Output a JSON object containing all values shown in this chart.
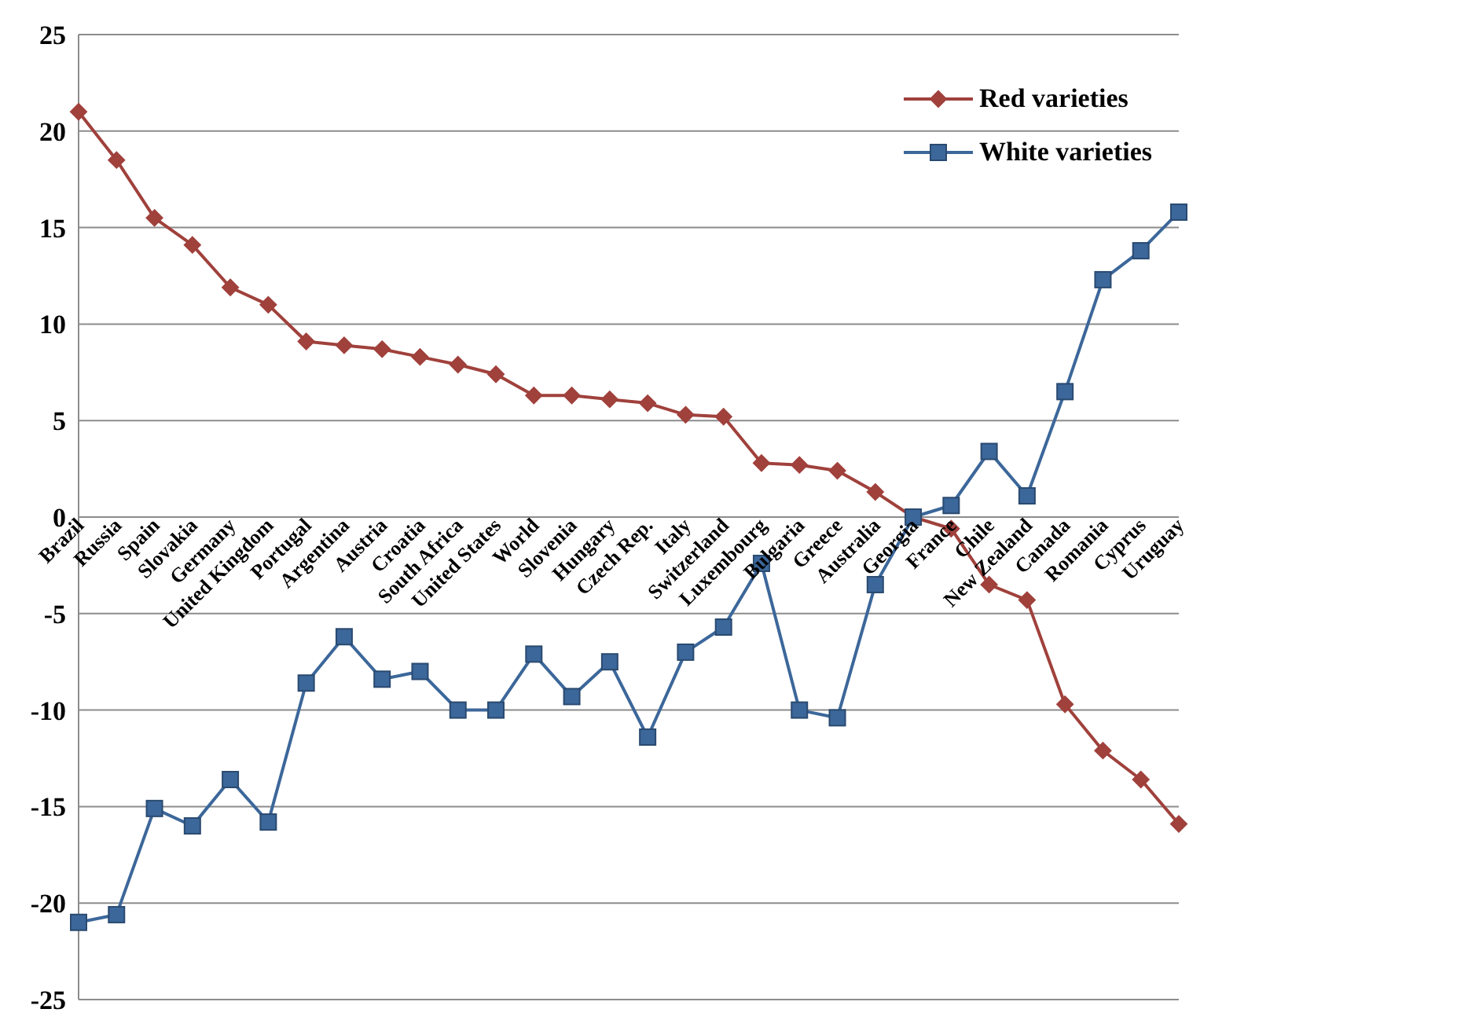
{
  "chart_data": {
    "type": "line",
    "categories": [
      "Brazil",
      "Russia",
      "Spain",
      "Slovakia",
      "Germany",
      "United Kingdom",
      "Portugal",
      "Argentina",
      "Austria",
      "Croatia",
      "South Africa",
      "United States",
      "World",
      "Slovenia",
      "Hungary",
      "Czech Rep.",
      "Italy",
      "Switzerland",
      "Luxembourg",
      "Bulgaria",
      "Greece",
      "Australia",
      "Georgia",
      "France",
      "Chile",
      "New Zealand",
      "Canada",
      "Romania",
      "Cyprus",
      "Uruguay"
    ],
    "series": [
      {
        "name": "Red varieties",
        "color": "#a0413c",
        "marker": "diamond",
        "values": [
          21.0,
          18.5,
          15.5,
          14.1,
          11.9,
          11.0,
          9.1,
          8.9,
          8.7,
          8.3,
          7.9,
          7.4,
          6.3,
          6.3,
          6.1,
          5.9,
          5.3,
          5.2,
          2.8,
          2.7,
          2.4,
          1.3,
          0,
          -0.6,
          -3.5,
          -4.3,
          -9.7,
          -12.1,
          -13.6,
          -15.9
        ]
      },
      {
        "name": "White varieties",
        "color": "#3c679a",
        "marker": "square",
        "values": [
          -21.0,
          -20.6,
          -15.1,
          -16.0,
          -13.6,
          -15.8,
          -8.6,
          -6.2,
          -8.4,
          -8.0,
          -10.0,
          -10.0,
          -7.1,
          -9.3,
          -7.5,
          -11.4,
          -7.0,
          -5.7,
          -2.4,
          -10.0,
          -10.4,
          -3.5,
          0,
          0.6,
          3.4,
          1.1,
          6.5,
          12.3,
          13.8,
          15.8
        ]
      }
    ],
    "ylim": [
      -25,
      25
    ],
    "yticks": [
      -25,
      -20,
      -15,
      -10,
      -5,
      0,
      5,
      10,
      15,
      20,
      25
    ],
    "grid": "y",
    "legend": "top right",
    "line_style": "solid"
  }
}
